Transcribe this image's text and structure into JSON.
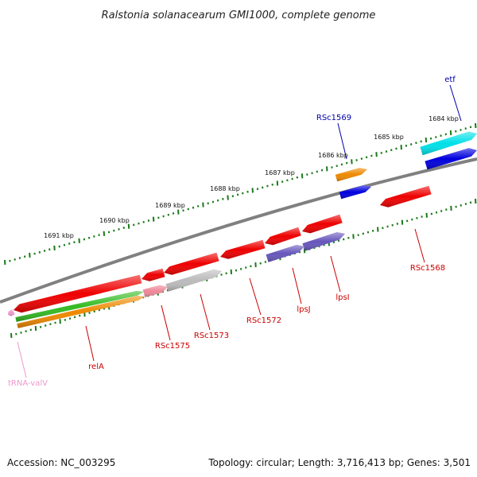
{
  "title": "Ralstonia solanacearum GMI1000, complete genome",
  "footer": {
    "accession": "Accession: NC_003295",
    "summary": "Topology: circular; Length: 3,716,413 bp; Genes: 3,501"
  },
  "colors": {
    "backbone": "#808080",
    "tick": "#1a7a1a",
    "gene_red": "#ee0000",
    "gene_blue": "#0000dd",
    "gene_cyan": "#00e0e8",
    "gene_orange": "#ee8800",
    "gene_green": "#33bb22",
    "gene_purple": "#6655bb",
    "gene_grey": "#bbbbbb",
    "gene_pink": "#ee8899",
    "trna_pink": "#ee99cc",
    "label_red": "#cc0000",
    "label_blue": "#0000aa"
  },
  "scale_labels": [
    {
      "text": "1684 kbp"
    },
    {
      "text": "1685 kbp"
    },
    {
      "text": "1686 kbp"
    },
    {
      "text": "1687 kbp"
    },
    {
      "text": "1688 kbp"
    },
    {
      "text": "1689 kbp"
    },
    {
      "text": "1690 kbp"
    },
    {
      "text": "1691 kbp"
    }
  ],
  "gene_labels": [
    {
      "text": "etf",
      "color_key": "label_blue"
    },
    {
      "text": "RSc1569",
      "color_key": "label_blue"
    },
    {
      "text": "RSc1568",
      "color_key": "label_red"
    },
    {
      "text": "lpsI",
      "color_key": "label_red"
    },
    {
      "text": "lpsJ",
      "color_key": "label_red"
    },
    {
      "text": "RSc1572",
      "color_key": "label_red"
    },
    {
      "text": "RSc1573",
      "color_key": "label_red"
    },
    {
      "text": "RSc1575",
      "color_key": "label_red"
    },
    {
      "text": "relA",
      "color_key": "label_red"
    },
    {
      "text": "tRNA-valV",
      "color_key": "trna_pink"
    }
  ]
}
